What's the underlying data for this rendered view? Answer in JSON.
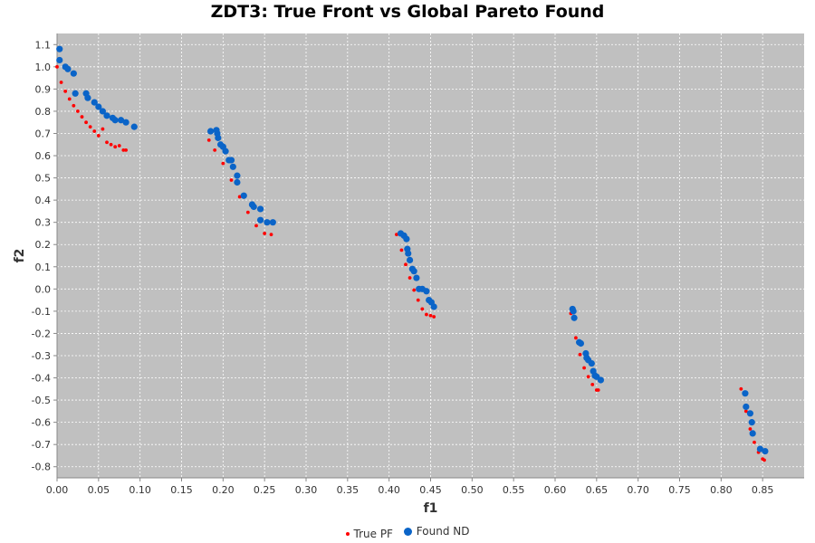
{
  "chart_data": {
    "type": "scatter",
    "title": "ZDT3: True Front vs Global Pareto Found",
    "xlabel": "f1",
    "ylabel": "f2",
    "xlim": [
      0.0,
      0.9
    ],
    "ylim": [
      -0.85,
      1.15
    ],
    "xticks": [
      "0.00",
      "0.05",
      "0.10",
      "0.15",
      "0.20",
      "0.25",
      "0.30",
      "0.35",
      "0.40",
      "0.45",
      "0.50",
      "0.55",
      "0.60",
      "0.65",
      "0.70",
      "0.75",
      "0.80",
      "0.85"
    ],
    "yticks": [
      "-0.8",
      "-0.7",
      "-0.6",
      "-0.5",
      "-0.4",
      "-0.3",
      "-0.2",
      "-0.1",
      "0.0",
      "0.1",
      "0.2",
      "0.3",
      "0.4",
      "0.5",
      "0.6",
      "0.7",
      "0.8",
      "0.9",
      "1.0",
      "1.1"
    ],
    "grid": true,
    "legend_position": "bottom-center",
    "background": "#c0c0c0",
    "series": [
      {
        "name": "True PF",
        "color": "#ff0000",
        "marker": "small-dot",
        "x": [
          0.0,
          0.005,
          0.01,
          0.015,
          0.02,
          0.025,
          0.03,
          0.035,
          0.04,
          0.045,
          0.05,
          0.055,
          0.06,
          0.065,
          0.07,
          0.075,
          0.08,
          0.083,
          0.183,
          0.19,
          0.2,
          0.21,
          0.22,
          0.23,
          0.24,
          0.25,
          0.258,
          0.409,
          0.415,
          0.42,
          0.425,
          0.43,
          0.435,
          0.44,
          0.445,
          0.45,
          0.454,
          0.619,
          0.625,
          0.63,
          0.635,
          0.64,
          0.645,
          0.65,
          0.652,
          0.824,
          0.83,
          0.835,
          0.84,
          0.845,
          0.85,
          0.852
        ],
        "y": [
          1.0,
          0.93,
          0.89,
          0.855,
          0.825,
          0.8,
          0.775,
          0.75,
          0.73,
          0.71,
          0.69,
          0.72,
          0.66,
          0.65,
          0.64,
          0.645,
          0.625,
          0.625,
          0.67,
          0.625,
          0.565,
          0.49,
          0.415,
          0.345,
          0.285,
          0.25,
          0.245,
          0.245,
          0.175,
          0.11,
          0.05,
          -0.005,
          -0.05,
          -0.09,
          -0.115,
          -0.12,
          -0.125,
          -0.11,
          -0.22,
          -0.295,
          -0.355,
          -0.395,
          -0.43,
          -0.455,
          -0.455,
          -0.45,
          -0.55,
          -0.63,
          -0.69,
          -0.735,
          -0.765,
          -0.77
        ]
      },
      {
        "name": "Found ND",
        "color": "#0a64c8",
        "marker": "dot",
        "x": [
          0.003,
          0.003,
          0.01,
          0.013,
          0.02,
          0.022,
          0.035,
          0.037,
          0.045,
          0.05,
          0.055,
          0.06,
          0.067,
          0.07,
          0.077,
          0.083,
          0.093,
          0.185,
          0.192,
          0.193,
          0.194,
          0.197,
          0.2,
          0.203,
          0.207,
          0.21,
          0.212,
          0.217,
          0.217,
          0.225,
          0.235,
          0.237,
          0.245,
          0.245,
          0.253,
          0.26,
          0.414,
          0.418,
          0.421,
          0.422,
          0.423,
          0.425,
          0.428,
          0.43,
          0.433,
          0.436,
          0.44,
          0.445,
          0.448,
          0.451,
          0.454,
          0.621,
          0.622,
          0.623,
          0.629,
          0.631,
          0.637,
          0.638,
          0.64,
          0.644,
          0.646,
          0.648,
          0.65,
          0.655,
          0.829,
          0.83,
          0.835,
          0.837,
          0.838,
          0.847,
          0.853
        ],
        "y": [
          1.08,
          1.03,
          1.0,
          0.99,
          0.97,
          0.88,
          0.88,
          0.86,
          0.84,
          0.82,
          0.8,
          0.78,
          0.77,
          0.76,
          0.76,
          0.75,
          0.73,
          0.71,
          0.715,
          0.7,
          0.68,
          0.65,
          0.64,
          0.62,
          0.58,
          0.58,
          0.55,
          0.51,
          0.48,
          0.42,
          0.38,
          0.37,
          0.36,
          0.31,
          0.3,
          0.3,
          0.25,
          0.24,
          0.225,
          0.18,
          0.16,
          0.13,
          0.09,
          0.08,
          0.05,
          0.0,
          0.0,
          -0.01,
          -0.05,
          -0.06,
          -0.08,
          -0.09,
          -0.1,
          -0.13,
          -0.24,
          -0.245,
          -0.29,
          -0.31,
          -0.32,
          -0.335,
          -0.37,
          -0.39,
          -0.395,
          -0.41,
          -0.47,
          -0.53,
          -0.56,
          -0.6,
          -0.65,
          -0.72,
          -0.73
        ]
      }
    ]
  }
}
